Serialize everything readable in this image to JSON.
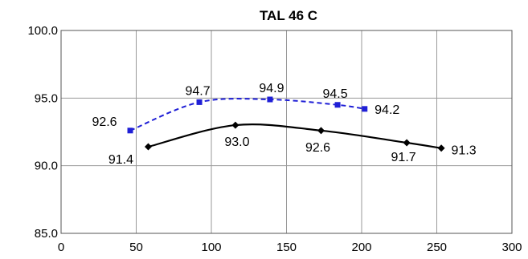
{
  "chart_data": {
    "type": "line",
    "title": "TAL 46 C",
    "xlabel": "",
    "ylabel": "",
    "xlim": [
      0,
      300
    ],
    "ylim": [
      85,
      100
    ],
    "x_ticks": [
      0,
      50,
      100,
      150,
      200,
      250,
      300
    ],
    "y_ticks": [
      "85.0",
      "90.0",
      "95.0",
      "100.0"
    ],
    "grid": true,
    "legend": "none",
    "series": [
      {
        "color": "#1f1fd6",
        "line_style": "dashed",
        "marker": "square",
        "points": [
          {
            "x": 46,
            "y": 92.6,
            "label": "92.6"
          },
          {
            "x": 92,
            "y": 94.7,
            "label": "94.7"
          },
          {
            "x": 139,
            "y": 94.9,
            "label": "94.9"
          },
          {
            "x": 184,
            "y": 94.5,
            "label": "94.5"
          },
          {
            "x": 202,
            "y": 94.2,
            "label": "94.2"
          }
        ]
      },
      {
        "color": "#000000",
        "line_style": "solid",
        "marker": "diamond",
        "points": [
          {
            "x": 58,
            "y": 91.4,
            "label": "91.4"
          },
          {
            "x": 116,
            "y": 93.0,
            "label": "93.0"
          },
          {
            "x": 173,
            "y": 92.6,
            "label": "92.6"
          },
          {
            "x": 230,
            "y": 91.7,
            "label": "91.7"
          },
          {
            "x": 253,
            "y": 91.3,
            "label": "91.3"
          }
        ]
      }
    ]
  }
}
